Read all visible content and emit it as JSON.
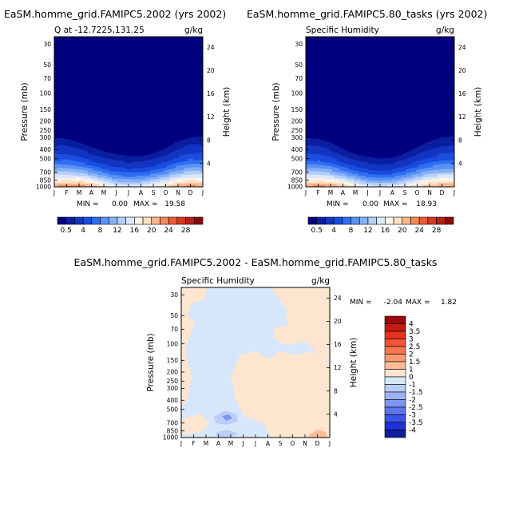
{
  "chart_data": [
    {
      "type": "heatmap",
      "title": "EaSM.homme_grid.FAMIPC5.2002 (yrs 2002)",
      "subtitle_left": "Q at -12.7225,131.25",
      "subtitle_right": "g/kg",
      "xlabel": "",
      "ylabel": "Pressure (mb)",
      "ylabel_right": "Height (km)",
      "x_ticks": [
        "J",
        "F",
        "M",
        "A",
        "M",
        "J",
        "J",
        "A",
        "S",
        "O",
        "N",
        "D",
        "J"
      ],
      "y_ticks": [
        30,
        50,
        70,
        100,
        150,
        200,
        250,
        300,
        400,
        500,
        700,
        850,
        1000
      ],
      "y_ticks_right": [
        24,
        20,
        16,
        12,
        8,
        4
      ],
      "ylim": [
        1000,
        25
      ],
      "min_label": "MIN =",
      "min_value": "0.00",
      "max_label": "MAX =",
      "max_value": "19.58",
      "colorbar_ticks": [
        "0.5",
        "4",
        "8",
        "12",
        "16",
        "20",
        "24",
        "28"
      ],
      "moisture_top_pressure": [
        300,
        310,
        340,
        380,
        420,
        450,
        470,
        470,
        440,
        390,
        330,
        300,
        290
      ],
      "surface_max": [
        18.5,
        19.2,
        19.58,
        18.0,
        15.5,
        13.0,
        12.5,
        13.0,
        14.5,
        16.0,
        18.0,
        19.0,
        18.5
      ]
    },
    {
      "type": "heatmap",
      "title": "EaSM.homme_grid.FAMIPC5.80_tasks (yrs 2002)",
      "subtitle_left": "Specific Humidity",
      "subtitle_right": "g/kg",
      "xlabel": "",
      "ylabel": "Pressure (mb)",
      "ylabel_right": "Height (km)",
      "x_ticks": [
        "J",
        "F",
        "M",
        "A",
        "M",
        "J",
        "J",
        "A",
        "S",
        "O",
        "N",
        "D",
        "J"
      ],
      "y_ticks": [
        30,
        50,
        70,
        100,
        150,
        200,
        250,
        300,
        400,
        500,
        700,
        850,
        1000
      ],
      "y_ticks_right": [
        24,
        20,
        16,
        12,
        8,
        4
      ],
      "ylim": [
        1000,
        25
      ],
      "min_label": "MIN =",
      "min_value": "0.00",
      "max_label": "MAX =",
      "max_value": "18.93",
      "colorbar_ticks": [
        "0.5",
        "4",
        "8",
        "12",
        "16",
        "20",
        "24",
        "28"
      ],
      "moisture_top_pressure": [
        300,
        310,
        340,
        400,
        450,
        480,
        500,
        490,
        440,
        380,
        330,
        300,
        290
      ],
      "surface_max": [
        18.5,
        18.93,
        18.5,
        17.5,
        15.0,
        12.5,
        12.0,
        12.5,
        14.0,
        16.0,
        17.5,
        18.5,
        18.5
      ]
    },
    {
      "type": "heatmap",
      "title": "EaSM.homme_grid.FAMIPC5.2002 - EaSM.homme_grid.FAMIPC5.80_tasks",
      "subtitle_left": "Specific Humidity",
      "subtitle_right": "g/kg",
      "xlabel": "",
      "ylabel": "Pressure (mb)",
      "ylabel_right": "Height (km)",
      "x_ticks": [
        "J",
        "F",
        "M",
        "A",
        "M",
        "J",
        "J",
        "A",
        "S",
        "O",
        "N",
        "D",
        "J"
      ],
      "y_ticks": [
        30,
        50,
        70,
        100,
        150,
        200,
        250,
        300,
        400,
        500,
        700,
        850,
        1000
      ],
      "y_ticks_right": [
        24,
        20,
        16,
        12,
        8,
        4
      ],
      "ylim": [
        1000,
        25
      ],
      "min_label": "MIN =",
      "min_value": "-2.04",
      "max_label": "MAX =",
      "max_value": "1.82",
      "colorbar_ticks": [
        "4",
        "3.5",
        "3",
        "2.5",
        "2",
        "1.5",
        "1",
        "0",
        "-1",
        "-1.5",
        "-2",
        "-2.5",
        "-3",
        "-3.5",
        "-4"
      ]
    }
  ],
  "colors": {
    "seq_palette": [
      "#00007f",
      "#0a1ea0",
      "#1235c2",
      "#1a4ce0",
      "#2e6ff2",
      "#5b92f5",
      "#86b1f7",
      "#b5cffa",
      "#dbe7fc",
      "#fff3e6",
      "#fde0c6",
      "#fbb68c",
      "#f58959",
      "#ec5d33",
      "#d8391f",
      "#b5200f",
      "#8c0a05"
    ],
    "div_palette": [
      "#99090c",
      "#c41a14",
      "#e3331f",
      "#f25635",
      "#f7774f",
      "#f9996e",
      "#fbbc96",
      "#fde5cf",
      "#d7e7fb",
      "#b9cdf8",
      "#9cb2f5",
      "#7d95f2",
      "#5c75ee",
      "#3a53e8",
      "#1d33d8",
      "#0f1c9c"
    ],
    "diff_positive": "#fde5cf",
    "diff_negative": "#d7e7fb",
    "diff_strong_negative": "#7d95f2",
    "diff_strong_positive": "#fbbc96"
  }
}
